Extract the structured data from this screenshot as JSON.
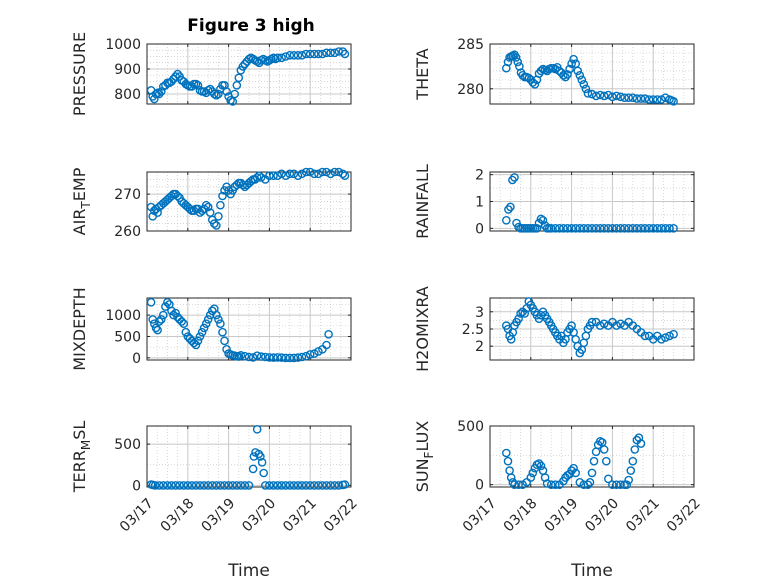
{
  "figure_title": "Figure 3 high",
  "colors": {
    "marker": "#0072BD",
    "axis": "#262626",
    "grid": "#c8c8c8"
  },
  "chart_data": [
    {
      "type": "scatter",
      "id": "pressure",
      "ylabel": "PRESSURE",
      "title": "Figure 3 high",
      "xlim": [
        0,
        5
      ],
      "ylim": [
        760,
        1000
      ],
      "yticks": [
        800,
        900,
        1000
      ],
      "ytick_labels": [
        "800",
        "900",
        "1000"
      ],
      "xticks": [
        0,
        1,
        2,
        3,
        4,
        5
      ],
      "xtick_labels": [],
      "minor_y": [
        825,
        850,
        875,
        925,
        950,
        975
      ],
      "x": [
        0.1,
        0.14,
        0.18,
        0.22,
        0.26,
        0.3,
        0.35,
        0.4,
        0.45,
        0.5,
        0.55,
        0.6,
        0.65,
        0.7,
        0.75,
        0.8,
        0.85,
        0.9,
        0.95,
        1.0,
        1.05,
        1.1,
        1.15,
        1.2,
        1.25,
        1.3,
        1.35,
        1.4,
        1.45,
        1.5,
        1.55,
        1.6,
        1.65,
        1.7,
        1.75,
        1.8,
        1.85,
        1.9,
        1.95,
        2.0,
        2.05,
        2.1,
        2.15,
        2.2,
        2.25,
        2.3,
        2.35,
        2.4,
        2.45,
        2.5,
        2.55,
        2.6,
        2.65,
        2.7,
        2.75,
        2.8,
        2.85,
        2.9,
        2.95,
        3.0,
        3.05,
        3.1,
        3.15,
        3.2,
        3.3,
        3.4,
        3.5,
        3.6,
        3.7,
        3.8,
        3.9,
        4.0,
        4.1,
        4.2,
        4.3,
        4.4,
        4.5,
        4.6,
        4.7,
        4.8,
        4.85
      ],
      "y": [
        815,
        790,
        780,
        800,
        805,
        800,
        810,
        830,
        835,
        845,
        845,
        850,
        860,
        870,
        880,
        870,
        855,
        850,
        840,
        835,
        830,
        830,
        840,
        840,
        835,
        815,
        810,
        810,
        805,
        815,
        820,
        810,
        800,
        795,
        800,
        820,
        835,
        835,
        810,
        790,
        775,
        770,
        800,
        835,
        865,
        895,
        910,
        920,
        930,
        940,
        945,
        940,
        935,
        930,
        925,
        935,
        940,
        935,
        930,
        935,
        940,
        945,
        940,
        945,
        945,
        950,
        955,
        955,
        955,
        955,
        960,
        960,
        960,
        960,
        960,
        965,
        965,
        965,
        970,
        970,
        960
      ]
    },
    {
      "type": "scatter",
      "id": "theta",
      "ylabel": "THETA",
      "xlim": [
        0,
        5
      ],
      "ylim": [
        278.3,
        285
      ],
      "yticks": [
        280,
        285
      ],
      "ytick_labels": [
        "280",
        "285"
      ],
      "xticks": [
        0,
        1,
        2,
        3,
        4,
        5
      ],
      "xtick_labels": [],
      "minor_y": [
        281,
        282,
        283,
        284
      ],
      "x": [
        0.4,
        0.44,
        0.48,
        0.52,
        0.56,
        0.6,
        0.64,
        0.68,
        0.72,
        0.76,
        0.8,
        0.85,
        0.9,
        0.95,
        1.0,
        1.05,
        1.1,
        1.15,
        1.2,
        1.25,
        1.3,
        1.35,
        1.4,
        1.45,
        1.5,
        1.55,
        1.6,
        1.65,
        1.7,
        1.75,
        1.8,
        1.85,
        1.9,
        1.95,
        2.0,
        2.05,
        2.1,
        2.15,
        2.2,
        2.25,
        2.3,
        2.35,
        2.4,
        2.5,
        2.6,
        2.7,
        2.8,
        2.9,
        3.0,
        3.1,
        3.2,
        3.3,
        3.4,
        3.5,
        3.6,
        3.7,
        3.8,
        3.9,
        4.0,
        4.1,
        4.2,
        4.3,
        4.4,
        4.45,
        4.5
      ],
      "y": [
        282.3,
        283,
        283.5,
        283.6,
        283.7,
        283.8,
        283.5,
        283,
        282.5,
        281.8,
        281.5,
        281.3,
        281.3,
        281.2,
        281,
        280.7,
        280.5,
        281,
        281.7,
        282,
        282.2,
        282.1,
        282,
        282.2,
        282.3,
        282.3,
        282.2,
        282.4,
        282,
        281.8,
        281.5,
        281.3,
        281.6,
        282.2,
        282.8,
        283.3,
        282.8,
        282,
        281.5,
        281,
        280.5,
        280,
        279.5,
        279.4,
        279.2,
        279.3,
        279.2,
        279.3,
        279.1,
        279.2,
        279.1,
        279,
        279,
        279,
        278.9,
        278.9,
        278.9,
        278.8,
        278.8,
        278.8,
        278.8,
        279,
        278.8,
        278.7,
        278.6
      ]
    },
    {
      "type": "scatter",
      "id": "air_temp",
      "ylabel": "AIR_TEMP",
      "xlim": [
        0,
        5
      ],
      "ylim": [
        260,
        276
      ],
      "yticks": [
        260,
        270
      ],
      "ytick_labels": [
        "260",
        "270"
      ],
      "xticks": [
        0,
        1,
        2,
        3,
        4,
        5
      ],
      "xtick_labels": [],
      "minor_y": [
        262,
        264,
        266,
        268,
        272,
        274
      ],
      "x": [
        0.1,
        0.14,
        0.18,
        0.22,
        0.26,
        0.3,
        0.35,
        0.4,
        0.45,
        0.5,
        0.55,
        0.6,
        0.65,
        0.7,
        0.75,
        0.8,
        0.85,
        0.9,
        0.95,
        1.0,
        1.05,
        1.1,
        1.15,
        1.2,
        1.25,
        1.3,
        1.35,
        1.4,
        1.45,
        1.5,
        1.55,
        1.6,
        1.65,
        1.7,
        1.75,
        1.8,
        1.85,
        1.9,
        1.95,
        2.0,
        2.05,
        2.1,
        2.15,
        2.2,
        2.25,
        2.3,
        2.35,
        2.4,
        2.45,
        2.5,
        2.55,
        2.6,
        2.65,
        2.7,
        2.75,
        2.8,
        2.9,
        3.0,
        3.1,
        3.2,
        3.3,
        3.4,
        3.5,
        3.6,
        3.7,
        3.8,
        3.9,
        4.0,
        4.1,
        4.2,
        4.3,
        4.4,
        4.5,
        4.6,
        4.7,
        4.8,
        4.85
      ],
      "y": [
        266.5,
        264,
        265.5,
        266,
        265,
        266.5,
        267,
        267.5,
        268,
        268.5,
        269,
        269.5,
        270,
        270,
        269.5,
        269,
        268,
        267.5,
        267,
        266.5,
        266,
        265.5,
        265.5,
        266,
        266,
        265,
        265.5,
        266,
        267,
        266.5,
        265,
        263,
        262,
        261.5,
        264,
        267,
        269.5,
        271,
        272,
        271,
        270,
        271,
        272,
        272.5,
        273,
        273,
        272.5,
        272,
        272.5,
        273,
        273.5,
        274,
        274,
        274.5,
        275,
        274.5,
        274,
        275,
        275,
        275,
        275.5,
        275,
        275.5,
        275.5,
        275,
        275.5,
        276,
        276,
        275.5,
        275.5,
        276,
        276,
        275.5,
        276,
        276,
        275.5,
        275
      ]
    },
    {
      "type": "scatter",
      "id": "rainfall",
      "ylabel": "RAINFALL",
      "xlim": [
        0,
        5
      ],
      "ylim": [
        -0.1,
        2.1
      ],
      "yticks": [
        0,
        1,
        2
      ],
      "ytick_labels": [
        "0",
        "1",
        "2"
      ],
      "xticks": [
        0,
        1,
        2,
        3,
        4,
        5
      ],
      "xtick_labels": [],
      "minor_y": [
        0.5,
        1.5
      ],
      "x": [
        0.4,
        0.45,
        0.5,
        0.55,
        0.6,
        0.65,
        0.7,
        0.75,
        0.8,
        0.85,
        0.9,
        0.95,
        1.0,
        1.05,
        1.1,
        1.15,
        1.2,
        1.25,
        1.3,
        1.35,
        1.4,
        1.45,
        1.5,
        1.6,
        1.7,
        1.8,
        1.9,
        2.0,
        2.1,
        2.2,
        2.3,
        2.4,
        2.5,
        2.6,
        2.7,
        2.8,
        2.9,
        3.0,
        3.1,
        3.2,
        3.3,
        3.4,
        3.5,
        3.6,
        3.7,
        3.8,
        3.9,
        4.0,
        4.1,
        4.2,
        4.3,
        4.4,
        4.5
      ],
      "y": [
        0.3,
        0.7,
        0.8,
        1.8,
        1.9,
        0.2,
        0.05,
        0,
        0,
        0,
        0,
        0,
        0,
        0,
        0,
        0,
        0.2,
        0.35,
        0.3,
        0.1,
        0,
        0,
        0,
        0,
        0,
        0,
        0,
        0,
        0,
        0,
        0,
        0,
        0,
        0,
        0,
        0,
        0,
        0,
        0,
        0,
        0,
        0,
        0,
        0,
        0,
        0,
        0,
        0,
        0,
        0,
        0,
        0,
        0
      ]
    },
    {
      "type": "scatter",
      "id": "mixdepth",
      "ylabel": "MIXDEPTH",
      "xlim": [
        0,
        5
      ],
      "ylim": [
        -50,
        1400
      ],
      "yticks": [
        0,
        500,
        1000
      ],
      "ytick_labels": [
        "0",
        "500",
        "1000"
      ],
      "xticks": [
        0,
        1,
        2,
        3,
        4,
        5
      ],
      "xtick_labels": [],
      "minor_y": [
        250,
        750,
        1250
      ],
      "x": [
        0.1,
        0.14,
        0.18,
        0.22,
        0.26,
        0.3,
        0.35,
        0.4,
        0.45,
        0.5,
        0.55,
        0.6,
        0.65,
        0.7,
        0.75,
        0.8,
        0.85,
        0.9,
        0.95,
        1.0,
        1.05,
        1.1,
        1.15,
        1.2,
        1.25,
        1.3,
        1.35,
        1.4,
        1.45,
        1.5,
        1.55,
        1.6,
        1.65,
        1.7,
        1.75,
        1.8,
        1.85,
        1.9,
        1.95,
        2.0,
        2.05,
        2.1,
        2.15,
        2.2,
        2.25,
        2.3,
        2.4,
        2.5,
        2.6,
        2.7,
        2.8,
        2.9,
        3.0,
        3.1,
        3.2,
        3.3,
        3.4,
        3.5,
        3.6,
        3.7,
        3.8,
        3.9,
        4.0,
        4.1,
        4.2,
        4.3,
        4.4,
        4.45
      ],
      "y": [
        1300,
        900,
        800,
        700,
        650,
        850,
        900,
        1000,
        1200,
        1300,
        1250,
        1100,
        1000,
        1050,
        950,
        900,
        850,
        800,
        600,
        500,
        450,
        400,
        350,
        300,
        400,
        500,
        600,
        700,
        800,
        900,
        1000,
        1100,
        1150,
        1000,
        900,
        800,
        600,
        400,
        200,
        100,
        80,
        60,
        50,
        40,
        30,
        60,
        40,
        20,
        10,
        50,
        30,
        20,
        10,
        5,
        10,
        5,
        0,
        0,
        0,
        5,
        20,
        40,
        80,
        100,
        150,
        200,
        300,
        550
      ]
    },
    {
      "type": "scatter",
      "id": "h2omixra",
      "ylabel": "H2OMIXRA",
      "xlim": [
        0,
        5
      ],
      "ylim": [
        1.6,
        3.4
      ],
      "yticks": [
        2,
        2.5,
        3
      ],
      "ytick_labels": [
        "2",
        "2.5",
        "3"
      ],
      "xticks": [
        0,
        1,
        2,
        3,
        4,
        5
      ],
      "xtick_labels": [],
      "minor_y": [
        2.25,
        2.75
      ],
      "x": [
        0.4,
        0.44,
        0.48,
        0.52,
        0.56,
        0.6,
        0.65,
        0.7,
        0.75,
        0.8,
        0.85,
        0.9,
        0.95,
        1.0,
        1.05,
        1.1,
        1.15,
        1.2,
        1.25,
        1.3,
        1.35,
        1.4,
        1.45,
        1.5,
        1.55,
        1.6,
        1.65,
        1.7,
        1.75,
        1.8,
        1.85,
        1.9,
        1.95,
        2.0,
        2.05,
        2.1,
        2.15,
        2.2,
        2.25,
        2.3,
        2.35,
        2.4,
        2.45,
        2.5,
        2.6,
        2.7,
        2.8,
        2.9,
        3.0,
        3.1,
        3.2,
        3.3,
        3.4,
        3.5,
        3.6,
        3.7,
        3.8,
        3.9,
        4.0,
        4.1,
        4.2,
        4.3,
        4.4,
        4.5
      ],
      "y": [
        2.6,
        2.5,
        2.3,
        2.2,
        2.4,
        2.6,
        2.7,
        2.8,
        2.95,
        3.0,
        2.95,
        3.1,
        3.3,
        3.2,
        3.1,
        3.0,
        2.9,
        2.8,
        2.9,
        3.0,
        2.9,
        2.8,
        2.7,
        2.6,
        2.5,
        2.4,
        2.3,
        2.2,
        2.3,
        2.1,
        2.2,
        2.4,
        2.5,
        2.6,
        2.4,
        2.2,
        2.0,
        1.8,
        1.9,
        2.1,
        2.3,
        2.5,
        2.6,
        2.7,
        2.7,
        2.6,
        2.65,
        2.6,
        2.7,
        2.6,
        2.65,
        2.6,
        2.7,
        2.6,
        2.5,
        2.4,
        2.3,
        2.3,
        2.2,
        2.3,
        2.2,
        2.25,
        2.3,
        2.35
      ]
    },
    {
      "type": "scatter",
      "id": "terr_msl",
      "ylabel": "TERR_MSL",
      "xlim": [
        0,
        5
      ],
      "ylim": [
        -20,
        720
      ],
      "yticks": [
        0,
        500
      ],
      "ytick_labels": [
        "0",
        "500"
      ],
      "xticks": [
        0,
        1,
        2,
        3,
        4,
        5
      ],
      "xtick_labels": [
        "03/17",
        "03/18",
        "03/19",
        "03/20",
        "03/21",
        "03/22"
      ],
      "minor_y": [
        250
      ],
      "xlabel": "Time",
      "x": [
        0.1,
        0.15,
        0.2,
        0.3,
        0.4,
        0.5,
        0.6,
        0.7,
        0.8,
        0.9,
        1.0,
        1.1,
        1.2,
        1.3,
        1.4,
        1.5,
        1.6,
        1.7,
        1.8,
        1.9,
        2.0,
        2.1,
        2.2,
        2.3,
        2.4,
        2.5,
        2.6,
        2.62,
        2.66,
        2.7,
        2.74,
        2.78,
        2.82,
        2.86,
        2.9,
        3.0,
        3.1,
        3.2,
        3.3,
        3.4,
        3.5,
        3.6,
        3.7,
        3.8,
        3.9,
        4.0,
        4.1,
        4.2,
        4.3,
        4.4,
        4.5,
        4.6,
        4.7,
        4.8,
        4.85
      ],
      "y": [
        10,
        5,
        0,
        0,
        0,
        0,
        0,
        0,
        0,
        0,
        0,
        0,
        0,
        0,
        0,
        0,
        0,
        0,
        0,
        0,
        0,
        0,
        0,
        0,
        0,
        0,
        200,
        350,
        400,
        680,
        380,
        350,
        280,
        150,
        0,
        0,
        0,
        0,
        0,
        0,
        0,
        0,
        0,
        0,
        0,
        0,
        0,
        0,
        0,
        0,
        0,
        0,
        0,
        5,
        10
      ]
    },
    {
      "type": "scatter",
      "id": "sun_flux",
      "ylabel": "SUN_FLUX",
      "xlim": [
        0,
        5
      ],
      "ylim": [
        -20,
        500
      ],
      "yticks": [
        0,
        500
      ],
      "ytick_labels": [
        "0",
        "500"
      ],
      "xticks": [
        0,
        1,
        2,
        3,
        4,
        5
      ],
      "xtick_labels": [
        "03/17",
        "03/18",
        "03/19",
        "03/20",
        "03/21",
        "03/22"
      ],
      "minor_y": [
        250
      ],
      "xlabel": "Time",
      "x": [
        0.4,
        0.44,
        0.48,
        0.52,
        0.56,
        0.6,
        0.7,
        0.8,
        0.9,
        1.0,
        1.05,
        1.1,
        1.15,
        1.2,
        1.25,
        1.3,
        1.35,
        1.4,
        1.5,
        1.6,
        1.7,
        1.8,
        1.85,
        1.9,
        1.95,
        2.0,
        2.05,
        2.1,
        2.2,
        2.3,
        2.4,
        2.45,
        2.5,
        2.55,
        2.6,
        2.65,
        2.7,
        2.75,
        2.8,
        2.85,
        2.9,
        3.0,
        3.1,
        3.2,
        3.3,
        3.35,
        3.4,
        3.45,
        3.5,
        3.55,
        3.6,
        3.65,
        3.7
      ],
      "y": [
        270,
        200,
        120,
        60,
        20,
        0,
        0,
        0,
        20,
        60,
        100,
        140,
        170,
        180,
        160,
        120,
        60,
        10,
        0,
        0,
        0,
        30,
        60,
        80,
        90,
        120,
        140,
        100,
        20,
        0,
        0,
        20,
        100,
        200,
        280,
        340,
        370,
        360,
        300,
        200,
        50,
        0,
        0,
        0,
        0,
        0,
        40,
        120,
        200,
        300,
        380,
        400,
        350
      ]
    }
  ]
}
